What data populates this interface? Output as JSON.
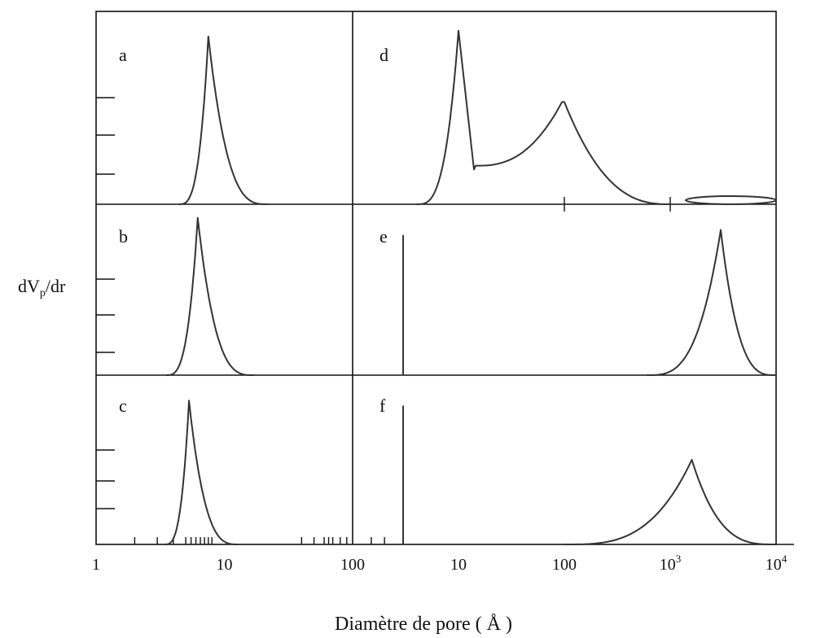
{
  "chart_data": {
    "type": "line",
    "ylabel": "dVp/dr",
    "xlabel": "Diamètre de pore ( Å )",
    "x_scale": "log",
    "left_axis": {
      "range": [
        1,
        100
      ],
      "tick_labels": [
        {
          "x": 1,
          "text": "1"
        },
        {
          "x": 10,
          "text": "10"
        },
        {
          "x": 100,
          "text": "100"
        }
      ]
    },
    "right_axis": {
      "range": [
        1,
        10000
      ],
      "tick_labels": [
        {
          "x": 10,
          "text": "10"
        },
        {
          "x": 100,
          "text": "100"
        },
        {
          "x": 1000,
          "text": "10",
          "sup": "3"
        },
        {
          "x": 10000,
          "text": "10",
          "sup": "4"
        }
      ]
    },
    "panels": [
      {
        "label": "a",
        "column": "left",
        "peak_x": 7.5,
        "peak_y": 0.87,
        "from_x": 4.4,
        "to_x": 22
      },
      {
        "label": "b",
        "column": "left",
        "peak_x": 6.2,
        "peak_y": 0.92,
        "from_x": 3.5,
        "to_x": 17
      },
      {
        "label": "c",
        "column": "left",
        "peak_x": 5.3,
        "peak_y": 0.85,
        "from_x": 3.4,
        "to_x": 13
      },
      {
        "label": "d",
        "column": "right",
        "peaks": [
          {
            "x": 10,
            "y": 0.9
          },
          {
            "x": 100,
            "y": 0.53
          }
        ],
        "from_x": 4,
        "to_x": 1000,
        "extra": "ellipse outline spanning roughly 1000–10000 on the baseline"
      },
      {
        "label": "e",
        "column": "right",
        "vertical_line_x": 3,
        "peak_x": 3000,
        "peak_y": 0.85,
        "from_x": 600,
        "to_x": 10000
      },
      {
        "label": "f",
        "column": "right",
        "vertical_line_x": 3,
        "peak_x": 1600,
        "peak_y": 0.5,
        "from_x": 100,
        "to_x": 10000
      }
    ]
  }
}
